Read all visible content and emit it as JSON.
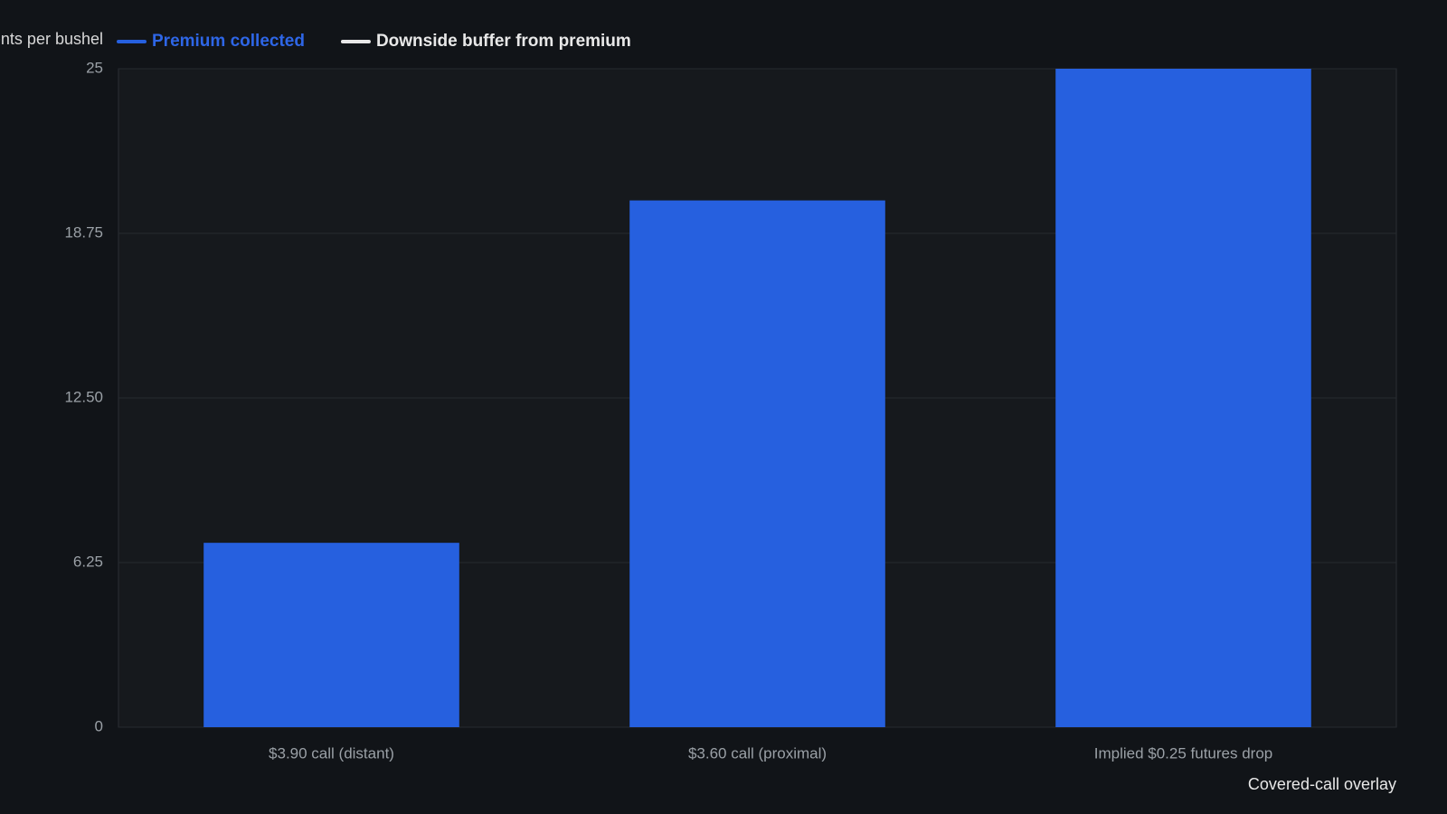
{
  "chart_data": {
    "type": "bar",
    "y_label": "Cents per bushel",
    "annotation": "Covered-call overlay",
    "categories": [
      "$3.90 call (distant)",
      "$3.60 call (proximal)",
      "Implied $0.25 futures drop"
    ],
    "series": [
      {
        "name": "Premium collected",
        "color": "#2660df",
        "values": [
          7,
          20,
          25
        ]
      },
      {
        "name": "Downside buffer from premium",
        "color": "#e8e8e8",
        "values": [
          null,
          null,
          null
        ]
      }
    ],
    "ylim": [
      0,
      25
    ],
    "yticks": [
      0,
      6.25,
      {
        "value": 12.5,
        "label": "12.50"
      },
      18.75,
      25
    ],
    "grid": true
  }
}
